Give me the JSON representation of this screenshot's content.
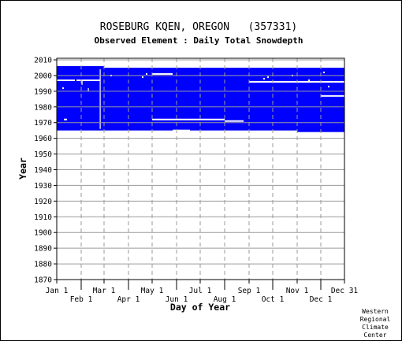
{
  "chart_data": {
    "type": "heatmap",
    "title": "ROSEBURG KQEN, OREGON   (357331)",
    "subtitle": "Observed Element : Daily Total Snowdepth",
    "xlabel": "Day of Year",
    "ylabel": "Year",
    "xlim": [
      1,
      366
    ],
    "ylim": [
      1870,
      2011
    ],
    "x_ticks_top_row": [
      {
        "label": "Jan 1",
        "day": 1
      },
      {
        "label": "Mar 1",
        "day": 61
      },
      {
        "label": "May 1",
        "day": 122
      },
      {
        "label": "Jul 1",
        "day": 183
      },
      {
        "label": "Sep 1",
        "day": 245
      },
      {
        "label": "Nov 1",
        "day": 306
      },
      {
        "label": "Dec 31",
        "day": 366
      }
    ],
    "x_ticks_bottom_row": [
      {
        "label": "Feb 1",
        "day": 32
      },
      {
        "label": "Apr 1",
        "day": 92
      },
      {
        "label": "Jun 1",
        "day": 153
      },
      {
        "label": "Aug 1",
        "day": 214
      },
      {
        "label": "Oct 1",
        "day": 275
      },
      {
        "label": "Dec 1",
        "day": 336
      }
    ],
    "y_ticks": [
      1870,
      1880,
      1890,
      1900,
      1910,
      1920,
      1930,
      1940,
      1950,
      1960,
      1970,
      1980,
      1990,
      2000,
      2010
    ],
    "grid": true,
    "data_color": "#0000ff",
    "gap_color": "#ffffff",
    "coverage_blocks": [
      {
        "day_start": 1,
        "day_end": 61,
        "year_start": 1965,
        "year_end": 2006
      },
      {
        "day_start": 61,
        "day_end": 245,
        "year_start": 1965,
        "year_end": 2005
      },
      {
        "day_start": 245,
        "day_end": 306,
        "year_start": 1965,
        "year_end": 2005
      },
      {
        "day_start": 306,
        "day_end": 366,
        "year_start": 1964,
        "year_end": 2005
      }
    ],
    "missing_segments": [
      {
        "day_start": 1,
        "day_end": 24,
        "year": 1997
      },
      {
        "day_start": 26,
        "day_end": 56,
        "year": 1997
      },
      {
        "day_start": 10,
        "day_end": 14,
        "year": 1972
      },
      {
        "day_start": 122,
        "day_end": 148,
        "year": 2001
      },
      {
        "day_start": 122,
        "day_end": 183,
        "year": 1972
      },
      {
        "day_start": 183,
        "day_end": 214,
        "year": 1972
      },
      {
        "day_start": 214,
        "day_end": 238,
        "year": 1971
      },
      {
        "day_start": 148,
        "day_end": 170,
        "year": 1965
      },
      {
        "day_start": 245,
        "day_end": 366,
        "year": 1996
      },
      {
        "day_start": 336,
        "day_end": 366,
        "year": 1987
      },
      {
        "day_start": 275,
        "day_end": 306,
        "year": 1964
      }
    ],
    "missing_ticks": [
      {
        "day": 56,
        "year_start": 1966,
        "year_end": 2004
      },
      {
        "day": 33,
        "year_start": 1994,
        "year_end": 1997
      },
      {
        "day": 41,
        "year_start": 1990,
        "year_end": 1992
      }
    ],
    "missing_dots": [
      {
        "day": 9,
        "year": 1992
      },
      {
        "day": 70,
        "year": 2000
      },
      {
        "day": 115,
        "year": 2001
      },
      {
        "day": 110,
        "year": 1999
      },
      {
        "day": 269,
        "year": 1999
      },
      {
        "day": 264,
        "year": 1998
      },
      {
        "day": 300,
        "year": 2000
      },
      {
        "day": 340,
        "year": 2002
      },
      {
        "day": 346,
        "year": 1993
      },
      {
        "day": 321,
        "year": 1997
      }
    ]
  },
  "credit": [
    "Western",
    "Regional",
    "Climate",
    "Center"
  ]
}
